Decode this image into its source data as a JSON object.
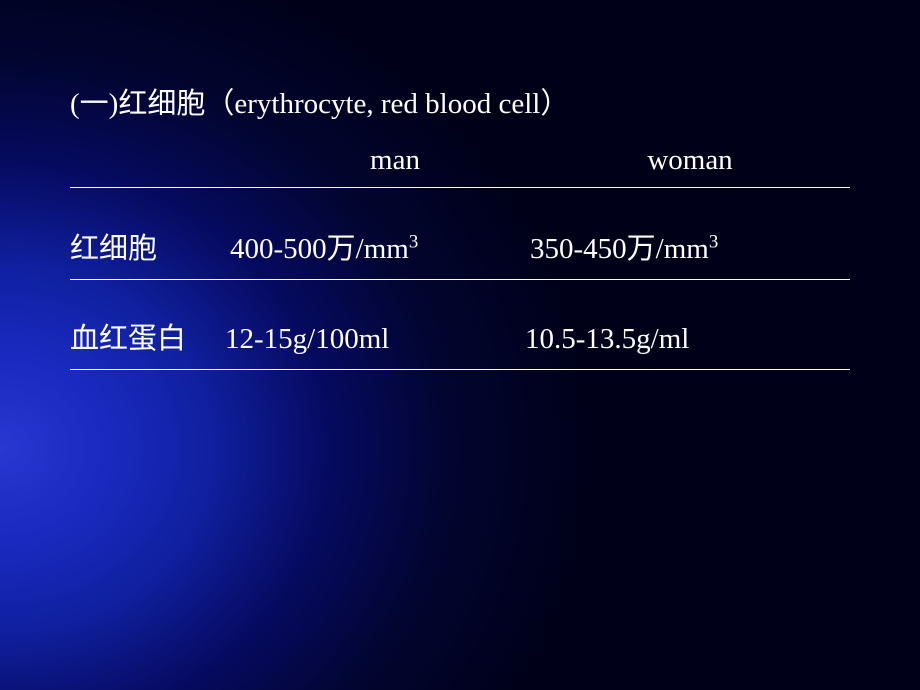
{
  "slide": {
    "background": {
      "gradient_type": "radial",
      "inner_color": "#2838d0",
      "mid_color": "#1020a0",
      "outer_color": "#000018"
    },
    "title": {
      "prefix": "(一)",
      "term_cn": "红细胞",
      "paren_open": "（",
      "term_en": "erythrocyte, red blood cell",
      "paren_close": "）",
      "fontsize": 29,
      "color": "#ffffff"
    },
    "table": {
      "headers": {
        "man": "man",
        "woman": "woman",
        "fontsize": 29,
        "color": "#ffffff"
      },
      "border_color": "#ffffff",
      "rows": [
        {
          "label": "红细胞",
          "man_value": "400-500",
          "man_unit_prefix": "万/mm",
          "man_unit_sup": "3",
          "woman_value": "350-450",
          "woman_unit_prefix": "万/mm",
          "woman_unit_sup": "3"
        },
        {
          "label": "血红蛋白",
          "man_value": "12-15g/100ml",
          "woman_value": "10.5-13.5g/ml"
        }
      ]
    },
    "text_color": "#ffffff",
    "body_fontsize": 29
  }
}
